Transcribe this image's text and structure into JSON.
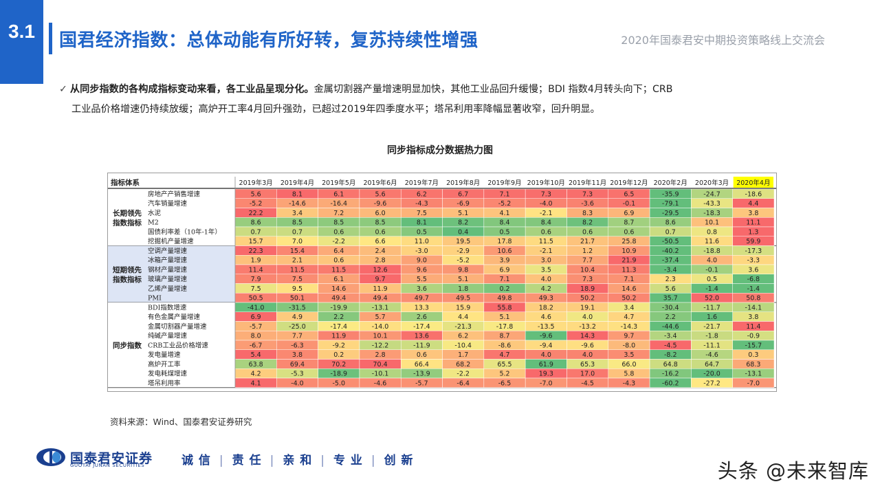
{
  "header": {
    "section_number": "3.1",
    "title": "国君经济指数：总体动能有所好转，复苏持续性增强",
    "event": "2020年国泰君安中期投资策略线上交流会"
  },
  "bullet": {
    "check": "✓",
    "bold": "从同步指数的各构成指标变动来看，各工业品呈现分化。",
    "text1": "金属切割器产量增速明显加快，其他工业品回升缓慢；BDI 指数4月转头向下；CRB",
    "text2": "工业品价格增速仍持续放缓；高炉开工率4月回升强劲，已超过2019年四季度水平；塔吊利用率降幅显著收窄，回升明显。"
  },
  "chart_data": {
    "type": "heatmap",
    "title": "同步指标成分数据热力图",
    "corner_label": "指标体系",
    "columns": [
      "2019年3月",
      "2019年4月",
      "2019年5月",
      "2019年6月",
      "2019年7月",
      "2019年8月",
      "2019年9月",
      "2019年10月",
      "2019年11月",
      "2019年12月",
      "2020年2月",
      "2020年3月",
      "2020年4月"
    ],
    "highlight_column": "2020年4月",
    "groups": [
      {
        "name": "长期领先指数指标",
        "rows": [
          {
            "label": "房地产产销售增速",
            "values": [
              5.6,
              8.1,
              6.1,
              5.6,
              6.2,
              6.7,
              7.1,
              7.3,
              7.3,
              6.5,
              -35.9,
              -24.7,
              -18.6
            ]
          },
          {
            "label": "汽车销量增速",
            "values": [
              -5.2,
              -14.6,
              -16.4,
              -9.6,
              -4.3,
              -6.9,
              -5.2,
              -4.0,
              -3.6,
              -0.1,
              -79.1,
              -43.3,
              4.4
            ]
          },
          {
            "label": "水泥",
            "values": [
              22.2,
              3.4,
              7.2,
              6.0,
              7.5,
              5.1,
              4.1,
              -2.1,
              8.3,
              6.9,
              -29.5,
              -18.3,
              3.8
            ]
          },
          {
            "label": "M2",
            "values": [
              8.6,
              8.5,
              8.5,
              8.5,
              8.1,
              8.2,
              8.4,
              8.4,
              8.2,
              8.7,
              8.6,
              10.1,
              11.1
            ]
          },
          {
            "label": "国债利率差（10年-1年）",
            "values": [
              0.7,
              0.7,
              0.6,
              0.6,
              0.5,
              0.4,
              0.5,
              0.6,
              0.6,
              0.6,
              0.7,
              0.8,
              1.3
            ]
          },
          {
            "label": "挖掘机产量增速",
            "values": [
              15.7,
              7.0,
              -2.2,
              6.6,
              11.0,
              19.5,
              17.8,
              11.5,
              21.7,
              25.8,
              -50.5,
              11.6,
              59.9
            ]
          }
        ]
      },
      {
        "name": "短期领先指数指标",
        "rows": [
          {
            "label": "空调产量增速",
            "values": [
              22.3,
              15.4,
              6.4,
              2.4,
              -3.0,
              -2.9,
              10.6,
              -2.1,
              1.2,
              10.9,
              -40.2,
              -18.8,
              -17.3
            ]
          },
          {
            "label": "冰箱产量增速",
            "values": [
              1.9,
              2.1,
              0.6,
              2.8,
              9.0,
              -5.2,
              3.9,
              3.0,
              7.7,
              21.9,
              -37.4,
              4.0,
              -3.3
            ]
          },
          {
            "label": "钢材产量增速",
            "values": [
              11.4,
              11.5,
              11.5,
              12.6,
              9.6,
              9.8,
              6.9,
              3.5,
              10.4,
              11.3,
              -3.4,
              -0.1,
              3.6
            ]
          },
          {
            "label": "玻璃产量增速",
            "values": [
              7.9,
              7.5,
              6.1,
              9.7,
              5.5,
              5.1,
              7.1,
              4.0,
              7.3,
              7.1,
              2.3,
              0.5,
              -6.8
            ]
          },
          {
            "label": "乙烯产量增速",
            "values": [
              7.5,
              9.5,
              14.6,
              11.9,
              3.6,
              1.8,
              0.2,
              4.2,
              18.9,
              14.6,
              5.6,
              -1.4,
              -1.4
            ]
          },
          {
            "label": "PMI",
            "values": [
              50.5,
              50.1,
              49.4,
              49.4,
              49.7,
              49.5,
              49.8,
              49.3,
              50.2,
              50.2,
              35.7,
              52.0,
              50.8
            ]
          }
        ]
      },
      {
        "name": "同步指数",
        "rows": [
          {
            "label": "BDI指数增速",
            "values": [
              -41.0,
              -31.5,
              -19.9,
              -13.1,
              13.3,
              15.9,
              55.8,
              18.2,
              19.1,
              3.4,
              -30.4,
              -11.7,
              -14.1
            ]
          },
          {
            "label": "有色金属产量增速",
            "values": [
              6.9,
              4.9,
              2.2,
              5.7,
              2.6,
              4.4,
              5.1,
              4.6,
              4.0,
              4.7,
              2.2,
              1.6,
              3.8
            ]
          },
          {
            "label": "金属切割器产量增速",
            "values": [
              -5.7,
              -25.0,
              -17.4,
              -14.0,
              -17.4,
              -21.3,
              -17.8,
              -13.5,
              -13.2,
              -14.3,
              -44.6,
              -21.7,
              11.4
            ]
          },
          {
            "label": "纯碱产量增速",
            "values": [
              8.0,
              7.7,
              11.9,
              10.1,
              13.6,
              6.2,
              8.7,
              -9.6,
              14.3,
              9.7,
              -3.4,
              -1.8,
              -0.9
            ]
          },
          {
            "label": "CRB工业品价格增速",
            "values": [
              -6.7,
              -6.3,
              -9.2,
              -12.2,
              -11.9,
              -10.4,
              -8.6,
              -9.4,
              -9.6,
              -8.0,
              -4.5,
              -11.1,
              -15.7
            ]
          },
          {
            "label": "发电量增速",
            "values": [
              5.4,
              3.8,
              0.2,
              2.8,
              0.6,
              1.7,
              4.7,
              4.0,
              4.0,
              3.5,
              -8.2,
              -4.6,
              0.3
            ]
          },
          {
            "label": "高炉开工率",
            "values": [
              63.8,
              69.4,
              70.2,
              70.4,
              66.4,
              68.2,
              65.5,
              61.9,
              65.3,
              66.0,
              64.8,
              64.7,
              68.3
            ]
          },
          {
            "label": "发电耗煤增速",
            "values": [
              4.2,
              -5.3,
              -18.9,
              -10.1,
              -13.9,
              -2.2,
              5.2,
              19.3,
              17.0,
              5.8,
              -16.2,
              -20.0,
              -13.1
            ]
          },
          {
            "label": "塔吊利用率",
            "values": [
              4.1,
              -4.0,
              -5.0,
              -4.6,
              -5.7,
              -6.4,
              -6.5,
              -7.0,
              -4.5,
              -4.3,
              -60.2,
              -27.2,
              -7.0
            ]
          }
        ]
      }
    ]
  },
  "source": "资料来源：Wind、国泰君安证券研究",
  "footer": {
    "company_cn": "国泰君安证券",
    "company_en": "GUOTAI JUNAN SECURITIES",
    "motto": [
      "诚 信",
      "责 任",
      "亲 和",
      "专 业",
      "创 新"
    ],
    "watermark": "头条 @未来智库"
  },
  "colors": {
    "accent": "#1f64c8",
    "group_bg": "#dde5f5",
    "highlight": "#ffff00",
    "heat_low": "#63be7b",
    "heat_mid": "#ffeb84",
    "heat_high": "#f8696b"
  }
}
